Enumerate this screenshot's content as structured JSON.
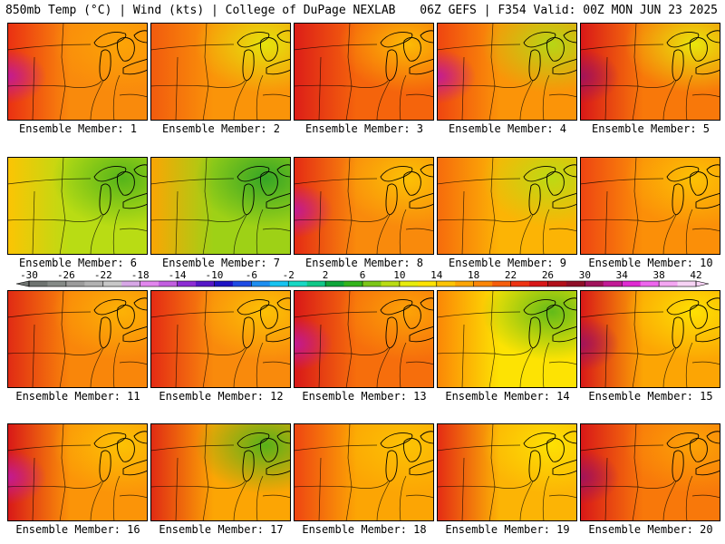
{
  "header": {
    "left": "850mb Temp (°C) | Wind (kts) | College of DuPage NEXLAB",
    "right": "06Z GEFS | F354 Valid: 00Z MON JUN 23 2025"
  },
  "colorbar": {
    "tick_labels": [
      "-30",
      "-26",
      "-22",
      "-18",
      "-14",
      "-10",
      "-6",
      "-2",
      "2",
      "6",
      "10",
      "14",
      "18",
      "22",
      "26",
      "30",
      "34",
      "38",
      "42"
    ],
    "min": -30,
    "max": 42,
    "step": 2,
    "colors": [
      "#6e7370",
      "#858a87",
      "#9c9c9c",
      "#b2b2b2",
      "#c8c8c8",
      "#d7a7e6",
      "#e286ee",
      "#c25ee0",
      "#8d2cd4",
      "#5617c7",
      "#1f13c4",
      "#1f4be4",
      "#1e8ef0",
      "#17c3f0",
      "#17d8c4",
      "#10c888",
      "#0fa63a",
      "#33b41c",
      "#7cc618",
      "#b9dc14",
      "#e7ec0c",
      "#fde303",
      "#fcc404",
      "#fca504",
      "#fb8606",
      "#f65e0c",
      "#ee3413",
      "#d81718",
      "#b2101a",
      "#8f0f28",
      "#a1145c",
      "#c21b96",
      "#e02ad2",
      "#ee66ee",
      "#f4a6f2",
      "#f7d3f5"
    ]
  },
  "panels": [
    {
      "label": "Ensemble Member: 1",
      "base": "#f98a0c",
      "warm": "#ea2f12",
      "cool": "#fca506",
      "hot": "#c21b96"
    },
    {
      "label": "Ensemble Member: 2",
      "base": "#fa9409",
      "warm": "#f15a0e",
      "cool": "#e3e70d",
      "hot": null
    },
    {
      "label": "Ensemble Member: 3",
      "base": "#f5640c",
      "warm": "#dc1d18",
      "cool": "#fcbf04",
      "hot": null
    },
    {
      "label": "Ensemble Member: 4",
      "base": "#fb9408",
      "warm": "#ef4410",
      "cool": "#b3d916",
      "hot": "#c21b96"
    },
    {
      "label": "Ensemble Member: 5",
      "base": "#f8780a",
      "warm": "#d81718",
      "cool": "#e7ec0c",
      "hot": "#a1145c"
    },
    {
      "label": "Ensemble Member: 6",
      "base": "#b9dc14",
      "warm": "#fcc404",
      "cool": "#4fb21a",
      "hot": null
    },
    {
      "label": "Ensemble Member: 7",
      "base": "#9ed116",
      "warm": "#fca504",
      "cool": "#2fa326",
      "hot": null
    },
    {
      "label": "Ensemble Member: 8",
      "base": "#f98a0c",
      "warm": "#e42a14",
      "cool": "#fcc404",
      "hot": "#c21b96"
    },
    {
      "label": "Ensemble Member: 9",
      "base": "#fcb405",
      "warm": "#f66a0c",
      "cool": "#b9dc14",
      "hot": null
    },
    {
      "label": "Ensemble Member: 10",
      "base": "#fb8f08",
      "warm": "#ee4412",
      "cool": "#fcc404",
      "hot": null
    },
    {
      "label": "Ensemble Member: 11",
      "base": "#f9860a",
      "warm": "#e02a14",
      "cool": "#fcb405",
      "hot": null
    },
    {
      "label": "Ensemble Member: 12",
      "base": "#f98a0c",
      "warm": "#e42a14",
      "cool": "#fcc404",
      "hot": null
    },
    {
      "label": "Ensemble Member: 13",
      "base": "#f66e0c",
      "warm": "#d81718",
      "cool": "#fca506",
      "hot": "#c21b96"
    },
    {
      "label": "Ensemble Member: 14",
      "base": "#fde303",
      "warm": "#fb8606",
      "cool": "#5ab91a",
      "hot": null
    },
    {
      "label": "Ensemble Member: 15",
      "base": "#fca504",
      "warm": "#d81718",
      "cool": "#fde303",
      "hot": "#a1145c"
    },
    {
      "label": "Ensemble Member: 16",
      "base": "#fb9408",
      "warm": "#d81718",
      "cool": "#fcc404",
      "hot": "#c21b96"
    },
    {
      "label": "Ensemble Member: 17",
      "base": "#fca504",
      "warm": "#e02a14",
      "cool": "#4fb21a",
      "hot": null
    },
    {
      "label": "Ensemble Member: 18",
      "base": "#fca504",
      "warm": "#ee4412",
      "cool": "#fcc404",
      "hot": null
    },
    {
      "label": "Ensemble Member: 19",
      "base": "#fcb405",
      "warm": "#e42a14",
      "cool": "#fde303",
      "hot": null
    },
    {
      "label": "Ensemble Member: 20",
      "base": "#f8780a",
      "warm": "#d81718",
      "cool": "#fca506",
      "hot": "#a1145c"
    }
  ]
}
